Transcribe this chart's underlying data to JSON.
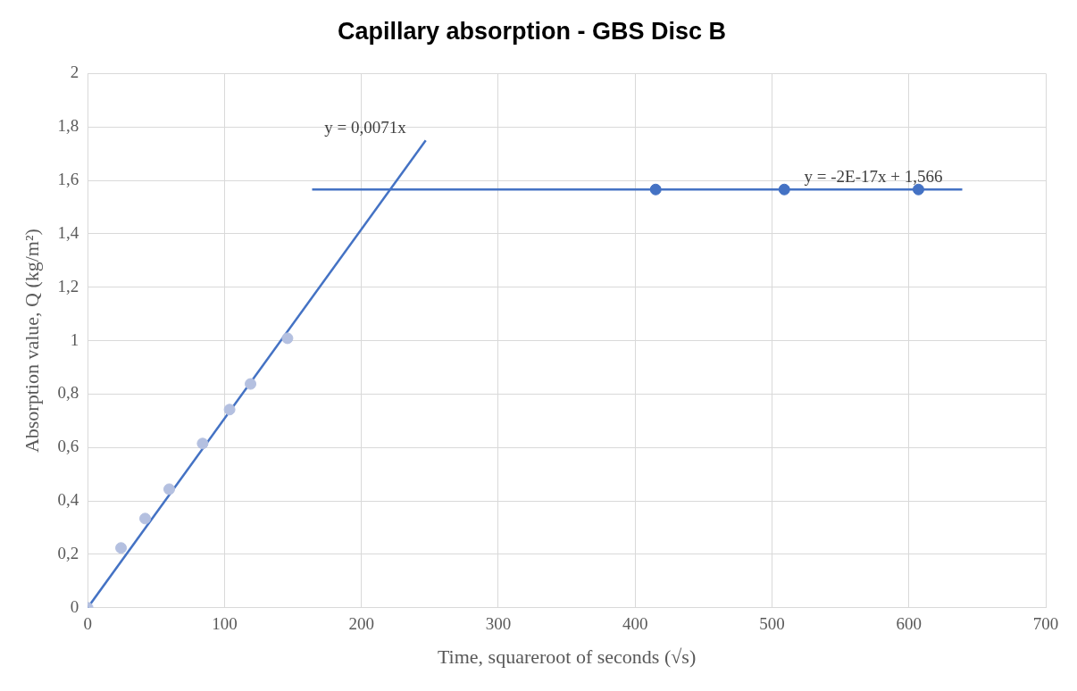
{
  "chart_data": {
    "type": "scatter",
    "title": "Capillary absorption - GBS Disc B",
    "xlabel": "Time, squareroot of seconds (√s)",
    "ylabel": "Absorption value, Q (kg/m²)",
    "series": [
      {
        "type": "scatter",
        "marker": "circle",
        "color": "#b4c0e0",
        "x": [
          0,
          24.4,
          42,
          59.6,
          84,
          103.7,
          119,
          146
        ],
        "values": [
          0,
          0.224,
          0.334,
          0.444,
          0.615,
          0.742,
          0.838,
          1.009
        ]
      },
      {
        "type": "scatter",
        "marker": "circle",
        "color": "#4472c4",
        "x": [
          415,
          509,
          607
        ],
        "values": [
          1.566,
          1.566,
          1.566
        ]
      },
      {
        "type": "line",
        "marker": "none",
        "color": "#4472c4",
        "x": [
          0,
          247
        ],
        "values": [
          0,
          1.75
        ]
      },
      {
        "type": "line",
        "marker": "none",
        "color": "#4472c4",
        "x": [
          164,
          639
        ],
        "values": [
          1.566,
          1.566
        ]
      }
    ],
    "xlim": [
      0,
      700
    ],
    "xticks": [
      0,
      100,
      200,
      300,
      400,
      500,
      600,
      700
    ],
    "ylim": [
      0,
      2
    ],
    "yticks": [
      0,
      {
        "value": 0.2,
        "label": "0,2"
      },
      {
        "value": 0.4,
        "label": "0,4"
      },
      {
        "value": 0.6,
        "label": "0,6"
      },
      {
        "value": 0.8,
        "label": "0,8"
      },
      1,
      {
        "value": 1.2,
        "label": "1,2"
      },
      {
        "value": 1.4,
        "label": "1,4"
      },
      {
        "value": 1.6,
        "label": "1,6"
      },
      {
        "value": 1.8,
        "label": "1,8"
      },
      2
    ],
    "annotations": [
      {
        "text": "y = 0,0071x",
        "x": 247,
        "y": 1.75
      },
      {
        "text": "y = -2E-17x + 1,566",
        "x": 639,
        "y": 1.566
      }
    ],
    "grid": true,
    "legend": false,
    "line_style": "solid"
  }
}
